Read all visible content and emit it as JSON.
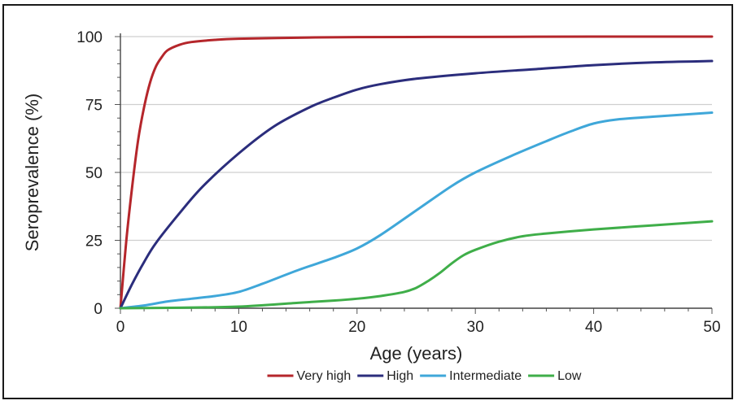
{
  "chart_data": {
    "type": "line",
    "xlabel": "Age (years)",
    "ylabel": "Seroprevalence (%)",
    "xlim": [
      0,
      50
    ],
    "ylim": [
      0,
      100
    ],
    "xticks": [
      0,
      10,
      20,
      30,
      40,
      50
    ],
    "yticks": [
      0,
      25,
      50,
      75,
      100
    ],
    "grid": "horizontal",
    "legend_position": "bottom",
    "series": [
      {
        "name": "Very high",
        "color": "#b5262b",
        "x": [
          0,
          0.5,
          1,
          1.5,
          2,
          2.5,
          3,
          3.5,
          4,
          5,
          6,
          8,
          10,
          15,
          20,
          30,
          40,
          50
        ],
        "y": [
          0,
          25,
          45,
          62,
          74,
          83,
          89,
          92.5,
          95,
          97,
          98,
          98.8,
          99.2,
          99.6,
          99.8,
          99.9,
          100,
          100
        ]
      },
      {
        "name": "High",
        "color": "#2b2d7c",
        "x": [
          0,
          1,
          2,
          3,
          5,
          7,
          10,
          13,
          16,
          18,
          20,
          22,
          25,
          30,
          35,
          40,
          45,
          50
        ],
        "y": [
          0,
          9,
          17,
          24,
          35,
          45,
          57,
          67,
          74,
          77.5,
          80.5,
          82.5,
          84.5,
          86.5,
          88,
          89.5,
          90.5,
          91
        ]
      },
      {
        "name": "Intermediate",
        "color": "#3fa7d9",
        "x": [
          0,
          2,
          4,
          6,
          8,
          10,
          12,
          15,
          18,
          20,
          22,
          25,
          28,
          30,
          33,
          36,
          38,
          40,
          42,
          45,
          50
        ],
        "y": [
          0,
          1,
          2.5,
          3.5,
          4.5,
          6,
          9,
          14,
          18.5,
          22,
          27,
          36,
          45,
          50,
          56,
          61.5,
          65,
          68,
          69.5,
          70.5,
          72
        ]
      },
      {
        "name": "Low",
        "color": "#3fae49",
        "x": [
          0,
          5,
          10,
          15,
          18,
          20,
          22,
          24,
          25,
          26,
          27,
          28,
          29,
          30,
          32,
          34,
          36,
          40,
          45,
          50
        ],
        "y": [
          0,
          0.2,
          0.6,
          2,
          2.8,
          3.5,
          4.5,
          6,
          7.5,
          10,
          13,
          16.5,
          19.5,
          21.5,
          24.5,
          26.5,
          27.5,
          29,
          30.5,
          32
        ]
      }
    ]
  }
}
